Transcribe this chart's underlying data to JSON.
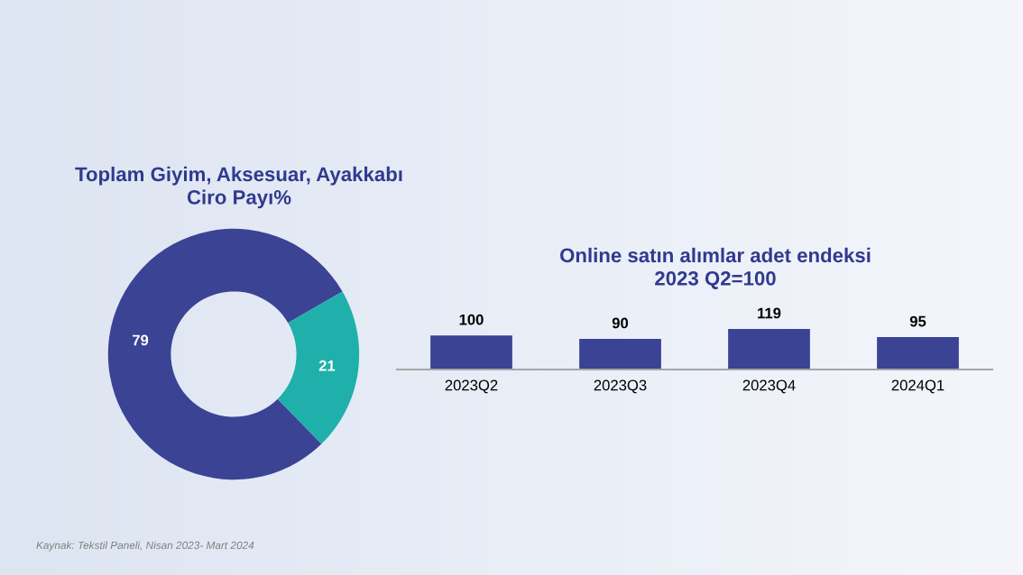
{
  "chart_data": [
    {
      "type": "donut",
      "title": "Toplam Giyim, Aksesuar, Ayakkabı\nCiro Payı%",
      "categories": [
        null,
        null
      ],
      "values": [
        79,
        21
      ],
      "colors": [
        "#3b4395",
        "#1fb0ab"
      ],
      "data_labels": true,
      "legend": false,
      "annotations": [
        "Kaynak: Tekstil Paneli, Nisan 2023- Mart 2024"
      ]
    },
    {
      "type": "bar",
      "title": "Online satın alımlar adet endeksi\n2023 Q2=100",
      "categories": [
        "2023Q2",
        "2023Q3",
        "2023Q4",
        "2024Q1"
      ],
      "values": [
        100,
        90,
        119,
        95
      ],
      "color": "#3b4395",
      "data_labels": true,
      "grid": false,
      "tick_labels": "x"
    }
  ]
}
